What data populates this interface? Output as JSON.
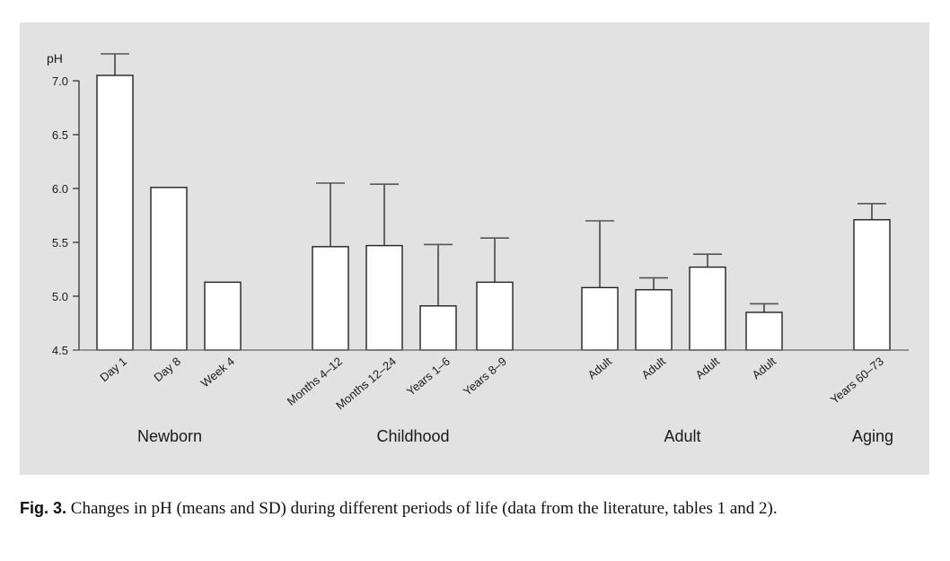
{
  "chart_data": {
    "type": "bar",
    "title": "",
    "xlabel": "",
    "ylabel": "pH",
    "ylim": [
      4.5,
      7.0
    ],
    "yticks": [
      "7.0",
      "6.5",
      "6.0",
      "5.5",
      "5.0",
      "4.5"
    ],
    "ytick_values": [
      7.0,
      6.5,
      6.0,
      5.5,
      5.0,
      4.5
    ],
    "grid": false,
    "error_bars": "SD (upper only)",
    "categories": [
      "Day 1",
      "Day 8",
      "Week 4",
      "Months 4–12",
      "Months 12–24",
      "Years 1–6",
      "Years 8–9",
      "Adult",
      "Adult",
      "Adult",
      "Adult",
      "Years 60–73"
    ],
    "values": [
      7.05,
      6.01,
      5.13,
      5.46,
      5.47,
      4.91,
      5.13,
      5.08,
      5.06,
      5.27,
      4.85,
      5.71
    ],
    "error_upper": [
      7.25,
      null,
      null,
      6.05,
      6.04,
      5.48,
      5.54,
      5.7,
      5.17,
      5.39,
      4.93,
      5.86
    ],
    "groups": [
      {
        "label": "Newborn",
        "members": [
          0,
          1,
          2
        ]
      },
      {
        "label": "Childhood",
        "members": [
          3,
          4,
          5,
          6
        ]
      },
      {
        "label": "Adult",
        "members": [
          7,
          8,
          9,
          10
        ]
      },
      {
        "label": "Aging",
        "members": [
          11
        ]
      }
    ]
  },
  "caption": {
    "fig_label": "Fig. 3.",
    "text": " Changes in pH (means and SD) during different periods of life (data from the literature, tables 1 and 2)."
  },
  "colors": {
    "panel_bg": "#e2e2e2",
    "bar_fill": "#ffffff",
    "bar_stroke": "#222222",
    "axis": "#555555"
  }
}
